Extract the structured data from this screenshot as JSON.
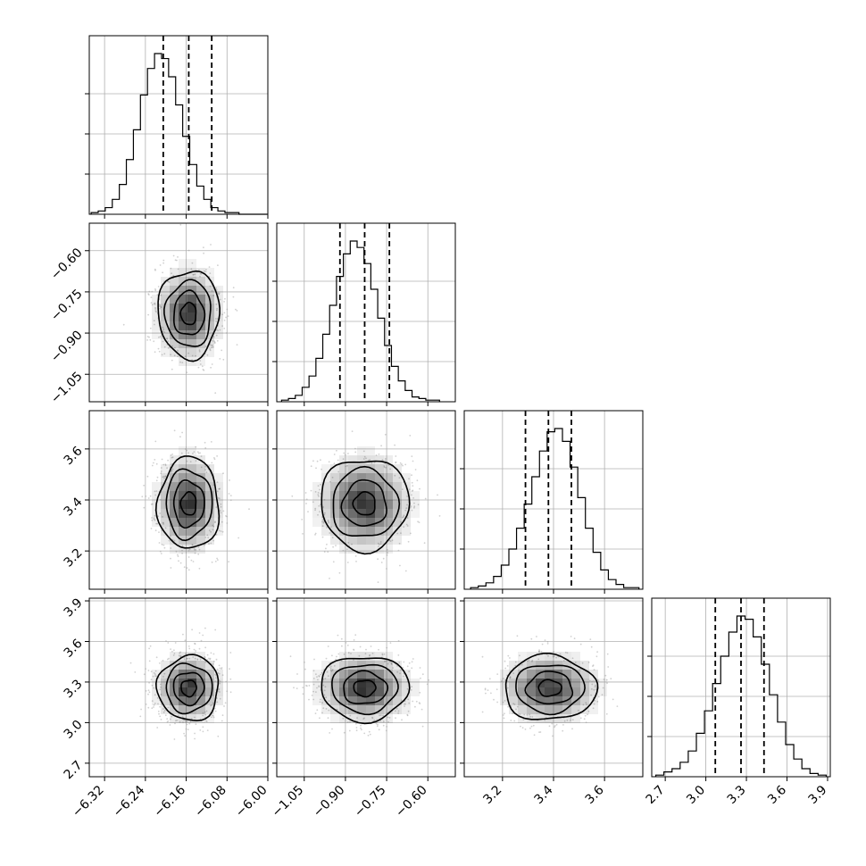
{
  "chart_data": {
    "type": "scatter",
    "subtype": "corner-plot",
    "n_parameters": 4,
    "title": "",
    "axis_labels": [
      "",
      "",
      "",
      ""
    ],
    "grid": true,
    "axes": [
      {
        "param": 0,
        "range": [
          -6.35,
          -6.0
        ],
        "ticks": [
          -6.32,
          -6.24,
          -6.16,
          -6.08,
          -6.0
        ],
        "tick_labels": [
          "−6.32",
          "−6.24",
          "−6.16",
          "−6.08",
          "−6.00"
        ]
      },
      {
        "param": 1,
        "range": [
          -1.15,
          -0.5
        ],
        "ticks": [
          -1.05,
          -0.9,
          -0.75,
          -0.6
        ],
        "tick_labels": [
          "−1.05",
          "−0.90",
          "−0.75",
          "−0.60"
        ]
      },
      {
        "param": 2,
        "range": [
          3.05,
          3.75
        ],
        "ticks": [
          3.2,
          3.4,
          3.6
        ],
        "tick_labels": [
          "3.2",
          "3.4",
          "3.6"
        ]
      },
      {
        "param": 3,
        "range": [
          2.6,
          3.92
        ],
        "ticks": [
          2.7,
          3.0,
          3.3,
          3.6,
          3.9
        ],
        "tick_labels": [
          "2.7",
          "3.0",
          "3.3",
          "3.6",
          "3.9"
        ]
      }
    ],
    "marginals": [
      {
        "param": 0,
        "bins": [
          -6.3394,
          -6.3256,
          -6.3118,
          -6.298,
          -6.2842,
          -6.2704,
          -6.2566,
          -6.2428,
          -6.229,
          -6.2152,
          -6.2014,
          -6.1876,
          -6.1738,
          -6.16,
          -6.1462,
          -6.1324,
          -6.1186,
          -6.1048,
          -6.091,
          -6.0772,
          -6.0634,
          -6.0496,
          -6.0358,
          -6.022,
          -6.0082
        ],
        "counts": [
          1,
          2,
          4,
          9,
          18,
          33,
          51,
          72,
          88,
          97,
          94,
          83,
          66,
          47,
          30,
          17,
          9,
          4,
          2,
          1,
          1,
          0,
          0,
          0,
          0
        ],
        "quantiles": [
          -6.205,
          -6.155,
          -6.11
        ]
      },
      {
        "param": 1,
        "bins": [
          -1.12,
          -1.095,
          -1.07,
          -1.045,
          -1.02,
          -0.995,
          -0.97,
          -0.945,
          -0.92,
          -0.895,
          -0.87,
          -0.845,
          -0.82,
          -0.795,
          -0.77,
          -0.745,
          -0.72,
          -0.695,
          -0.67,
          -0.645,
          -0.62,
          -0.595,
          -0.57
        ],
        "counts": [
          1,
          2,
          4,
          9,
          16,
          27,
          42,
          60,
          78,
          92,
          100,
          96,
          86,
          70,
          52,
          35,
          22,
          13,
          7,
          3,
          2,
          1,
          1
        ],
        "quantiles": [
          -0.92,
          -0.83,
          -0.74
        ]
      },
      {
        "param": 2,
        "bins": [
          3.09,
          3.12,
          3.15,
          3.18,
          3.21,
          3.24,
          3.27,
          3.3,
          3.33,
          3.36,
          3.39,
          3.42,
          3.45,
          3.48,
          3.51,
          3.54,
          3.57,
          3.6,
          3.63,
          3.66,
          3.69,
          3.72
        ],
        "counts": [
          1,
          2,
          4,
          8,
          15,
          25,
          38,
          53,
          70,
          86,
          98,
          100,
          92,
          76,
          57,
          38,
          23,
          12,
          6,
          3,
          1,
          1
        ],
        "quantiles": [
          3.29,
          3.38,
          3.47
        ]
      },
      {
        "param": 3,
        "bins": [
          2.66,
          2.72,
          2.78,
          2.84,
          2.9,
          2.96,
          3.02,
          3.08,
          3.14,
          3.2,
          3.26,
          3.32,
          3.38,
          3.44,
          3.5,
          3.56,
          3.62,
          3.68,
          3.74,
          3.8,
          3.86
        ],
        "counts": [
          1,
          3,
          5,
          9,
          16,
          27,
          41,
          58,
          75,
          90,
          100,
          98,
          87,
          70,
          51,
          34,
          20,
          11,
          5,
          2,
          1
        ],
        "quantiles": [
          3.07,
          3.26,
          3.43
        ]
      }
    ],
    "joints": [
      {
        "x_param": 0,
        "y_param": 1,
        "center": [
          -6.155,
          -0.83
        ],
        "sigma": [
          0.03,
          0.08
        ]
      },
      {
        "x_param": 0,
        "y_param": 2,
        "center": [
          -6.155,
          3.385
        ],
        "sigma": [
          0.03,
          0.09
        ]
      },
      {
        "x_param": 1,
        "y_param": 2,
        "center": [
          -0.83,
          3.385
        ],
        "sigma": [
          0.08,
          0.09
        ]
      },
      {
        "x_param": 0,
        "y_param": 3,
        "center": [
          -6.155,
          3.255
        ],
        "sigma": [
          0.03,
          0.12
        ]
      },
      {
        "x_param": 1,
        "y_param": 3,
        "center": [
          -0.83,
          3.255
        ],
        "sigma": [
          0.08,
          0.12
        ]
      },
      {
        "x_param": 2,
        "y_param": 3,
        "center": [
          3.385,
          3.255
        ],
        "sigma": [
          0.09,
          0.12
        ]
      }
    ],
    "contour_levels_sigma": [
      0.5,
      1.0,
      1.5,
      2.0
    ],
    "colors": {
      "points": "#9a9a9a",
      "density": "#000000",
      "lines": "#000000",
      "grid": "#b0b0b0"
    }
  }
}
